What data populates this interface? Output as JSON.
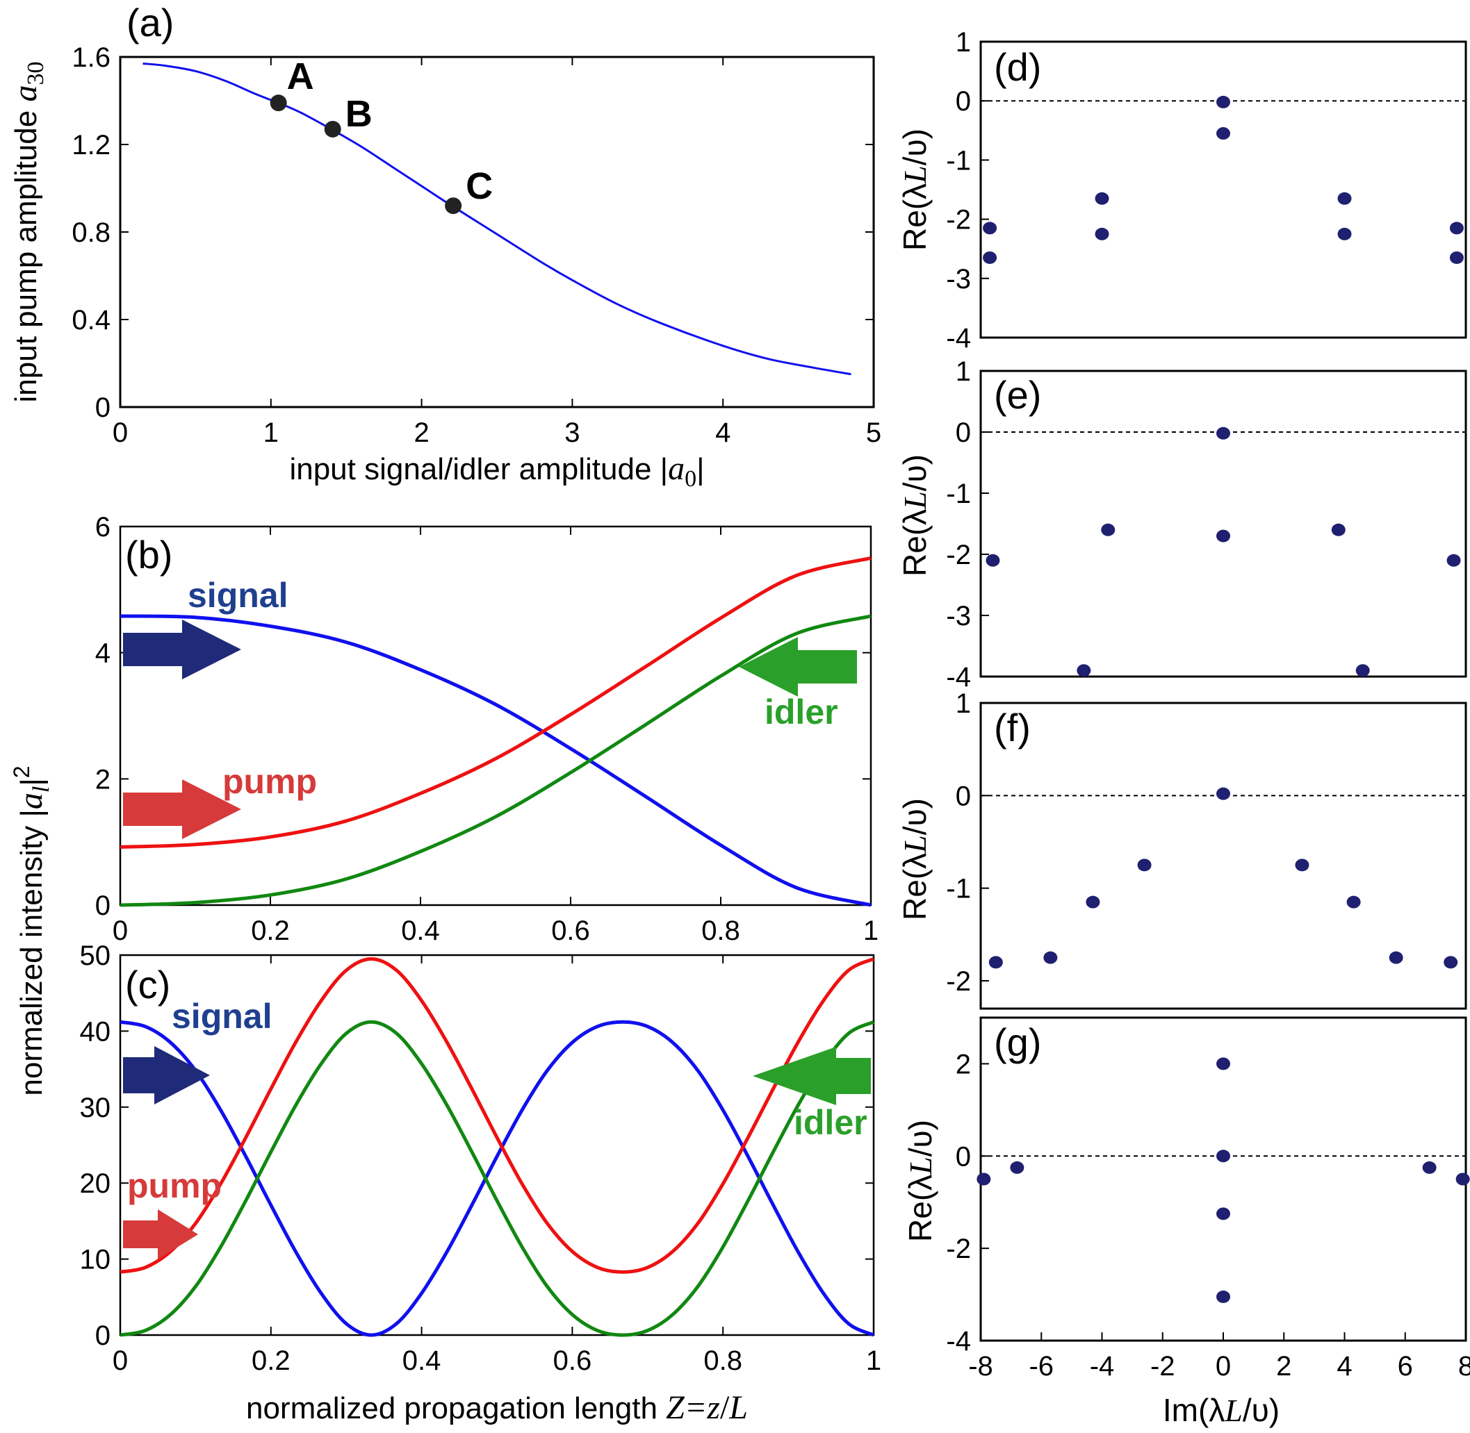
{
  "colors": {
    "signal": "#1010ee",
    "pump": "#ee1111",
    "idler": "#118811",
    "signal_label": "#1f3f8f",
    "pump_label": "#d63a3a",
    "idler_label": "#2aa02a",
    "arrow_signal": "#1f2a78",
    "arrow_pump": "#d63a3a",
    "arrow_idler": "#2aa02a",
    "eigen_point": "#1f2070",
    "marker": "#222222"
  },
  "chart_data": [
    {
      "id": "a",
      "type": "line",
      "panel_label": "(a)",
      "xlabel": "input signal/idler amplitude |a0|",
      "ylabel": "input pump amplitude a30",
      "xlim": [
        0,
        5
      ],
      "ylim": [
        0,
        1.6
      ],
      "xticks": [
        "0",
        "1",
        "2",
        "3",
        "4",
        "5"
      ],
      "yticks": [
        "0",
        "0.4",
        "0.8",
        "1.2",
        "1.6"
      ],
      "series": [
        {
          "name": "curve",
          "x": [
            0.15,
            0.3,
            0.5,
            0.7,
            0.9,
            1.05,
            1.2,
            1.4,
            1.6,
            1.8,
            2.0,
            2.2,
            2.5,
            2.8,
            3.0,
            3.3,
            3.6,
            4.0,
            4.3,
            4.6,
            4.85
          ],
          "y": [
            1.57,
            1.56,
            1.535,
            1.49,
            1.43,
            1.39,
            1.345,
            1.27,
            1.19,
            1.1,
            1.01,
            0.92,
            0.79,
            0.66,
            0.58,
            0.47,
            0.38,
            0.28,
            0.22,
            0.18,
            0.15
          ]
        }
      ],
      "points": [
        {
          "label": "A",
          "x": 1.05,
          "y": 1.39
        },
        {
          "label": "B",
          "x": 1.41,
          "y": 1.27
        },
        {
          "label": "C",
          "x": 2.21,
          "y": 0.92
        }
      ]
    },
    {
      "id": "b",
      "type": "line",
      "panel_label": "(b)",
      "xlim": [
        0,
        1
      ],
      "ylim": [
        0,
        6
      ],
      "xticks": [
        "0",
        "0.2",
        "0.4",
        "0.6",
        "0.8",
        "1"
      ],
      "yticks": [
        "0",
        "2",
        "4",
        "6"
      ],
      "series": [
        {
          "name": "signal",
          "x": [
            0,
            0.1,
            0.2,
            0.3,
            0.4,
            0.5,
            0.6,
            0.7,
            0.8,
            0.9,
            1.0
          ],
          "y": [
            4.58,
            4.56,
            4.42,
            4.17,
            3.73,
            3.18,
            2.48,
            1.72,
            0.95,
            0.28,
            0.0
          ]
        },
        {
          "name": "pump",
          "x": [
            0,
            0.1,
            0.2,
            0.3,
            0.4,
            0.5,
            0.6,
            0.7,
            0.8,
            0.9,
            1.0
          ],
          "y": [
            0.92,
            0.96,
            1.08,
            1.33,
            1.77,
            2.32,
            3.02,
            3.78,
            4.55,
            5.22,
            5.5
          ]
        },
        {
          "name": "idler",
          "x": [
            0,
            0.1,
            0.2,
            0.3,
            0.4,
            0.5,
            0.6,
            0.7,
            0.8,
            0.9,
            1.0
          ],
          "y": [
            0.0,
            0.04,
            0.16,
            0.41,
            0.85,
            1.4,
            2.1,
            2.86,
            3.63,
            4.3,
            4.58
          ]
        }
      ],
      "labels": {
        "signal": "signal",
        "pump": "pump",
        "idler": "idler"
      }
    },
    {
      "id": "c",
      "type": "line",
      "panel_label": "(c)",
      "xlabel": "normalized propagation length Z=z/L",
      "ylabel": "normalized intensity |al|2",
      "xlim": [
        0,
        1
      ],
      "ylim": [
        0,
        50
      ],
      "xticks": [
        "0",
        "0.2",
        "0.4",
        "0.6",
        "0.8",
        "1"
      ],
      "yticks": [
        "0",
        "10",
        "20",
        "30",
        "40",
        "50"
      ],
      "series": [
        {
          "name": "signal",
          "x": [
            0,
            0.0333,
            0.0667,
            0.1,
            0.1333,
            0.1667,
            0.2,
            0.2333,
            0.2667,
            0.3,
            0.3333,
            0.3667,
            0.4,
            0.4333,
            0.4667,
            0.5,
            0.5333,
            0.5667,
            0.6,
            0.6333,
            0.6667,
            0.7,
            0.7333,
            0.7667,
            0.8,
            0.8333,
            0.8667,
            0.9,
            0.9333,
            0.9667,
            1.0
          ],
          "y": [
            41.2,
            40.6,
            38.5,
            34.8,
            29.6,
            23.5,
            17.1,
            10.9,
            5.5,
            1.5,
            0.0,
            1.5,
            5.5,
            10.9,
            17.1,
            23.5,
            29.6,
            34.8,
            38.5,
            40.6,
            41.2,
            40.6,
            38.5,
            34.8,
            29.6,
            23.5,
            17.1,
            10.9,
            5.5,
            1.5,
            0.0
          ]
        },
        {
          "name": "pump",
          "x": [
            0,
            0.0333,
            0.0667,
            0.1,
            0.1333,
            0.1667,
            0.2,
            0.2333,
            0.2667,
            0.3,
            0.3333,
            0.3667,
            0.4,
            0.4333,
            0.4667,
            0.5,
            0.5333,
            0.5667,
            0.6,
            0.6333,
            0.6667,
            0.7,
            0.7333,
            0.7667,
            0.8,
            0.8333,
            0.8667,
            0.9,
            0.9333,
            0.9667,
            1.0
          ],
          "y": [
            8.3,
            8.9,
            11.0,
            14.7,
            19.9,
            26.0,
            32.4,
            38.6,
            44.0,
            48.0,
            49.5,
            48.0,
            44.0,
            38.6,
            32.4,
            26.0,
            19.9,
            14.7,
            11.0,
            8.9,
            8.3,
            8.9,
            11.0,
            14.7,
            19.9,
            26.0,
            32.4,
            38.6,
            44.0,
            48.0,
            49.5
          ]
        },
        {
          "name": "idler",
          "x": [
            0,
            0.0333,
            0.0667,
            0.1,
            0.1333,
            0.1667,
            0.2,
            0.2333,
            0.2667,
            0.3,
            0.3333,
            0.3667,
            0.4,
            0.4333,
            0.4667,
            0.5,
            0.5333,
            0.5667,
            0.6,
            0.6333,
            0.6667,
            0.7,
            0.7333,
            0.7667,
            0.8,
            0.8333,
            0.8667,
            0.9,
            0.9333,
            0.9667,
            1.0
          ],
          "y": [
            0.0,
            0.6,
            2.7,
            6.4,
            11.6,
            17.7,
            24.1,
            30.3,
            35.7,
            39.7,
            41.2,
            39.7,
            35.7,
            30.3,
            24.1,
            17.7,
            11.6,
            6.4,
            2.7,
            0.6,
            0.0,
            0.6,
            2.7,
            6.4,
            11.6,
            17.7,
            24.1,
            30.3,
            35.7,
            39.7,
            41.2
          ]
        }
      ],
      "labels": {
        "signal": "signal",
        "pump": "pump",
        "idler": "idler"
      }
    },
    {
      "id": "d",
      "type": "scatter",
      "panel_label": "(d)",
      "ylabel": "Re(λL/υ)",
      "xlim": [
        -8,
        8
      ],
      "ylim": [
        -4,
        1
      ],
      "yticks": [
        "1",
        "0",
        "-1",
        "-2",
        "-3",
        "-4"
      ],
      "reference_line": 0,
      "points": [
        [
          0,
          -0.02
        ],
        [
          0,
          -0.55
        ],
        [
          -7.7,
          -2.15
        ],
        [
          -7.7,
          -2.65
        ],
        [
          -4.0,
          -1.65
        ],
        [
          -4.0,
          -2.25
        ],
        [
          4.0,
          -1.65
        ],
        [
          4.0,
          -2.25
        ],
        [
          7.7,
          -2.15
        ],
        [
          7.7,
          -2.65
        ]
      ]
    },
    {
      "id": "e",
      "type": "scatter",
      "panel_label": "(e)",
      "ylabel": "Re(λL/υ)",
      "xlim": [
        -8,
        8
      ],
      "ylim": [
        -4,
        1
      ],
      "yticks": [
        "1",
        "0",
        "-1",
        "-2",
        "-3",
        "-4"
      ],
      "reference_line": 0,
      "points": [
        [
          0,
          -0.02
        ],
        [
          0,
          -1.7
        ],
        [
          -7.6,
          -2.1
        ],
        [
          -3.8,
          -1.6
        ],
        [
          3.8,
          -1.6
        ],
        [
          7.6,
          -2.1
        ],
        [
          -4.6,
          -3.9
        ],
        [
          4.6,
          -3.9
        ]
      ]
    },
    {
      "id": "f",
      "type": "scatter",
      "panel_label": "(f)",
      "ylabel": "Re(λL/υ)",
      "xlim": [
        -8,
        8
      ],
      "ylim": [
        -2.3,
        1
      ],
      "yticks": [
        "1",
        "0",
        "-1",
        "-2"
      ],
      "reference_line": 0,
      "points": [
        [
          0,
          0.02
        ],
        [
          -7.5,
          -1.8
        ],
        [
          -5.7,
          -1.75
        ],
        [
          -4.3,
          -1.15
        ],
        [
          -2.6,
          -0.75
        ],
        [
          2.6,
          -0.75
        ],
        [
          4.3,
          -1.15
        ],
        [
          5.7,
          -1.75
        ],
        [
          7.5,
          -1.8
        ]
      ]
    },
    {
      "id": "g",
      "type": "scatter",
      "panel_label": "(g)",
      "ylabel": "Re(λL/υ)",
      "xlabel": "Im(λL/υ)",
      "xlim": [
        -8,
        8
      ],
      "ylim": [
        -4,
        3
      ],
      "xticks": [
        "-8",
        "-6",
        "-4",
        "-2",
        "0",
        "2",
        "4",
        "6",
        "8"
      ],
      "yticks": [
        "2",
        "0",
        "-2",
        "-4"
      ],
      "reference_line": 0,
      "points": [
        [
          0,
          2.0
        ],
        [
          0,
          0.0
        ],
        [
          0,
          -1.25
        ],
        [
          0,
          -3.05
        ],
        [
          -7.9,
          -0.5
        ],
        [
          -6.8,
          -0.25
        ],
        [
          6.8,
          -0.25
        ],
        [
          7.9,
          -0.5
        ]
      ]
    }
  ]
}
